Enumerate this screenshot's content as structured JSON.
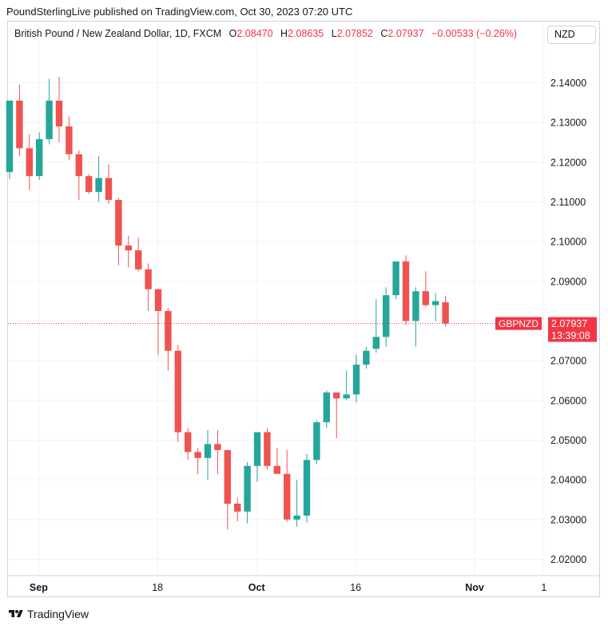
{
  "header": {
    "published": "PoundSterlingLive published on TradingView.com, Oct 30, 2023 07:20 UTC"
  },
  "legend": {
    "symbol": "British Pound / New Zealand Dollar, 1D, FXCM",
    "open_label": "O",
    "open": "2.08470",
    "high_label": "H",
    "high": "2.08635",
    "low_label": "L",
    "low": "2.07852",
    "close_label": "C",
    "close": "2.07937",
    "change": "−0.00533 (−0.26%)"
  },
  "currency_button": "NZD",
  "price_tag": {
    "symbol": "GBPNZD",
    "price": "2.07937",
    "countdown": "13:39:08"
  },
  "footer": {
    "brand": "TradingView"
  },
  "colors": {
    "up": "#26a69a",
    "down": "#ef5350",
    "grid": "#f0f3fa",
    "axis_text": "#131722",
    "last_price": "#f23645"
  },
  "chart_data": {
    "type": "candlestick",
    "symbol": "GBPNZD",
    "interval": "1D",
    "y_range": [
      2.0165,
      2.1505
    ],
    "y_ticks": [
      "2.14000",
      "2.13000",
      "2.12000",
      "2.11000",
      "2.10000",
      "2.09000",
      "2.08000",
      "2.07000",
      "2.06000",
      "2.05000",
      "2.04000",
      "2.03000",
      "2.02000"
    ],
    "x_ticks": [
      {
        "label": "Sep",
        "index": 1,
        "bold": true
      },
      {
        "label": "18",
        "index": 13,
        "bold": false
      },
      {
        "label": "Oct",
        "index": 23,
        "bold": true
      },
      {
        "label": "16",
        "index": 33,
        "bold": false
      },
      {
        "label": "Nov",
        "index": 45,
        "bold": true
      },
      {
        "label": "1",
        "index": 52,
        "bold": false
      }
    ],
    "x_slots": 54,
    "candles": [
      {
        "date": "2023-08-31",
        "o": 2.1175,
        "h": 2.1355,
        "l": 2.1158,
        "c": 2.1355
      },
      {
        "date": "2023-09-01",
        "o": 2.1355,
        "h": 2.1395,
        "l": 2.1215,
        "c": 2.1235
      },
      {
        "date": "2023-09-04",
        "o": 2.1235,
        "h": 2.127,
        "l": 2.113,
        "c": 2.1165
      },
      {
        "date": "2023-09-05",
        "o": 2.1165,
        "h": 2.1275,
        "l": 2.1155,
        "c": 2.1258
      },
      {
        "date": "2023-09-06",
        "o": 2.1258,
        "h": 2.141,
        "l": 2.1245,
        "c": 2.1355
      },
      {
        "date": "2023-09-07",
        "o": 2.1355,
        "h": 2.1415,
        "l": 2.125,
        "c": 2.129
      },
      {
        "date": "2023-09-08",
        "o": 2.129,
        "h": 2.1315,
        "l": 2.1205,
        "c": 2.122
      },
      {
        "date": "2023-09-11",
        "o": 2.122,
        "h": 2.123,
        "l": 2.1105,
        "c": 2.1165
      },
      {
        "date": "2023-09-12",
        "o": 2.1165,
        "h": 2.117,
        "l": 2.112,
        "c": 2.1125
      },
      {
        "date": "2023-09-13",
        "o": 2.1125,
        "h": 2.1215,
        "l": 2.11,
        "c": 2.116
      },
      {
        "date": "2023-09-14",
        "o": 2.116,
        "h": 2.1195,
        "l": 2.1095,
        "c": 2.1105
      },
      {
        "date": "2023-09-15",
        "o": 2.1105,
        "h": 2.111,
        "l": 2.094,
        "c": 2.099
      },
      {
        "date": "2023-09-18",
        "o": 2.099,
        "h": 2.1015,
        "l": 2.0935,
        "c": 2.0978
      },
      {
        "date": "2023-09-19",
        "o": 2.0978,
        "h": 2.101,
        "l": 2.0925,
        "c": 2.093
      },
      {
        "date": "2023-09-20",
        "o": 2.093,
        "h": 2.0945,
        "l": 2.0825,
        "c": 2.088
      },
      {
        "date": "2023-09-21",
        "o": 2.088,
        "h": 2.0882,
        "l": 2.0715,
        "c": 2.0825
      },
      {
        "date": "2023-09-22",
        "o": 2.0825,
        "h": 2.0832,
        "l": 2.0675,
        "c": 2.0725
      },
      {
        "date": "2023-09-25",
        "o": 2.0725,
        "h": 2.074,
        "l": 2.0495,
        "c": 2.052
      },
      {
        "date": "2023-09-26",
        "o": 2.052,
        "h": 2.053,
        "l": 2.045,
        "c": 2.047
      },
      {
        "date": "2023-09-27",
        "o": 2.047,
        "h": 2.048,
        "l": 2.0415,
        "c": 2.0455
      },
      {
        "date": "2023-09-28",
        "o": 2.0455,
        "h": 2.0525,
        "l": 2.04,
        "c": 2.049
      },
      {
        "date": "2023-09-29",
        "o": 2.049,
        "h": 2.0525,
        "l": 2.0415,
        "c": 2.0475
      },
      {
        "date": "2023-10-02",
        "o": 2.0475,
        "h": 2.0475,
        "l": 2.0275,
        "c": 2.034
      },
      {
        "date": "2023-10-03",
        "o": 2.034,
        "h": 2.0355,
        "l": 2.0295,
        "c": 2.032
      },
      {
        "date": "2023-10-04",
        "o": 2.032,
        "h": 2.0445,
        "l": 2.029,
        "c": 2.0435
      },
      {
        "date": "2023-10-05",
        "o": 2.0435,
        "h": 2.0515,
        "l": 2.0395,
        "c": 2.052
      },
      {
        "date": "2023-10-06",
        "o": 2.052,
        "h": 2.053,
        "l": 2.0425,
        "c": 2.0435
      },
      {
        "date": "2023-10-09",
        "o": 2.0435,
        "h": 2.048,
        "l": 2.0415,
        "c": 2.0415
      },
      {
        "date": "2023-10-10",
        "o": 2.0415,
        "h": 2.0475,
        "l": 2.0295,
        "c": 2.03
      },
      {
        "date": "2023-10-11",
        "o": 2.03,
        "h": 2.04,
        "l": 2.0282,
        "c": 2.031
      },
      {
        "date": "2023-10-12",
        "o": 2.031,
        "h": 2.0465,
        "l": 2.0292,
        "c": 2.045
      },
      {
        "date": "2023-10-13",
        "o": 2.045,
        "h": 2.055,
        "l": 2.044,
        "c": 2.0545
      },
      {
        "date": "2023-10-16",
        "o": 2.0545,
        "h": 2.0625,
        "l": 2.053,
        "c": 2.062
      },
      {
        "date": "2023-10-17",
        "o": 2.062,
        "h": 2.062,
        "l": 2.0505,
        "c": 2.0605
      },
      {
        "date": "2023-10-18",
        "o": 2.0605,
        "h": 2.0675,
        "l": 2.06,
        "c": 2.0615
      },
      {
        "date": "2023-10-19",
        "o": 2.0615,
        "h": 2.0715,
        "l": 2.0595,
        "c": 2.069
      },
      {
        "date": "2023-10-20",
        "o": 2.069,
        "h": 2.0735,
        "l": 2.068,
        "c": 2.0725
      },
      {
        "date": "2023-10-23",
        "o": 2.073,
        "h": 2.0855,
        "l": 2.072,
        "c": 2.076
      },
      {
        "date": "2023-10-24",
        "o": 2.076,
        "h": 2.0885,
        "l": 2.0735,
        "c": 2.0865
      },
      {
        "date": "2023-10-25",
        "o": 2.0865,
        "h": 2.095,
        "l": 2.0855,
        "c": 2.095
      },
      {
        "date": "2023-10-26",
        "o": 2.095,
        "h": 2.0965,
        "l": 2.079,
        "c": 2.08
      },
      {
        "date": "2023-10-27",
        "o": 2.08,
        "h": 2.0885,
        "l": 2.0735,
        "c": 2.0875
      },
      {
        "date": "2023-10-27b",
        "o": 2.0875,
        "h": 2.0925,
        "l": 2.0835,
        "c": 2.084
      },
      {
        "date": "2023-10-27c",
        "o": 2.084,
        "h": 2.087,
        "l": 2.08,
        "c": 2.085
      },
      {
        "date": "2023-10-30",
        "o": 2.0847,
        "h": 2.08635,
        "l": 2.07852,
        "c": 2.07937
      }
    ],
    "last_price": 2.07937,
    "grid": true,
    "x_label": "",
    "y_label": ""
  }
}
